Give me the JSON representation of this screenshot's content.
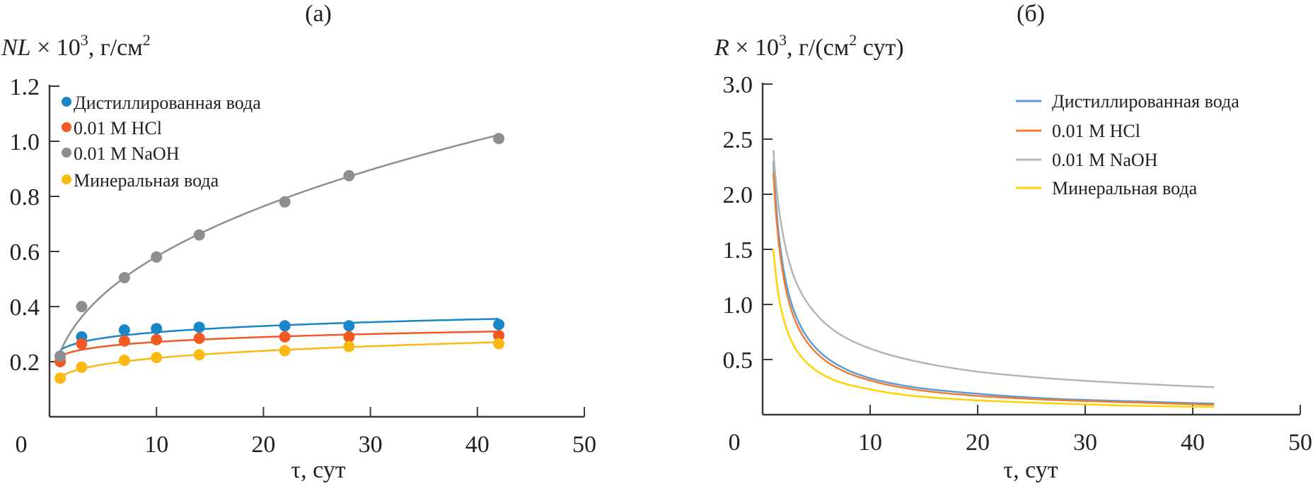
{
  "chart_data": [
    {
      "type": "scatter",
      "panel_label": "(а)",
      "ylabel": {
        "var": "NL",
        "mid": " × 10",
        "sup": "3",
        "unit": ", г/см",
        "sup2": "2"
      },
      "xlabel": "τ, сут",
      "xlim": [
        0,
        50
      ],
      "ylim": [
        0,
        1.2
      ],
      "xticks": [
        0,
        10,
        20,
        30,
        40,
        50
      ],
      "yticks": [
        "0.2",
        "0.4",
        "0.6",
        "0.8",
        "1.0",
        "1.2"
      ],
      "grid": false,
      "legend_position": "top-left",
      "fit": "power-law trend lines",
      "x": [
        1,
        3,
        7,
        10,
        14,
        22,
        28,
        42
      ],
      "series": [
        {
          "name": "Дистиллированная вода",
          "color": "#1a86c8",
          "values": [
            0.22,
            0.29,
            0.315,
            0.32,
            0.325,
            0.33,
            0.33,
            0.335
          ]
        },
        {
          "name": "0.01 M HCl",
          "color": "#f05a22",
          "values": [
            0.2,
            0.265,
            0.275,
            0.28,
            0.285,
            0.29,
            0.29,
            0.295
          ]
        },
        {
          "name": "0.01 M NaOH",
          "color": "#8c8f91",
          "values": [
            0.22,
            0.4,
            0.505,
            0.58,
            0.66,
            0.78,
            0.875,
            1.01
          ]
        },
        {
          "name": "Минеральная вода",
          "color": "#fdb913",
          "values": [
            0.14,
            0.18,
            0.205,
            0.215,
            0.225,
            0.24,
            0.255,
            0.265
          ]
        }
      ]
    },
    {
      "type": "line",
      "panel_label": "(б)",
      "ylabel": {
        "var": "R",
        "mid": " × 10",
        "sup": "3",
        "unit": ", г/(см",
        "sup2": "2",
        "tail": " сут)"
      },
      "xlabel": "τ, сут",
      "xlim": [
        0,
        50
      ],
      "ylim": [
        0,
        3.0
      ],
      "xticks": [
        0,
        10,
        20,
        30,
        40,
        50
      ],
      "yticks": [
        "0.5",
        "1.0",
        "1.5",
        "2.0",
        "2.5",
        "3.0"
      ],
      "grid": false,
      "legend_position": "top-right",
      "x": [
        1,
        2,
        3,
        5,
        7,
        10,
        14,
        20,
        28,
        35,
        42
      ],
      "series": [
        {
          "name": "Дистиллированная вода",
          "color": "#5b9bd5",
          "values": [
            2.3,
            1.29,
            0.92,
            0.6,
            0.45,
            0.33,
            0.25,
            0.19,
            0.14,
            0.12,
            0.1
          ]
        },
        {
          "name": "0.01 M HCl",
          "color": "#ed7d31",
          "values": [
            2.2,
            1.22,
            0.86,
            0.56,
            0.42,
            0.31,
            0.23,
            0.17,
            0.13,
            0.11,
            0.09
          ]
        },
        {
          "name": "0.01 M NaOH",
          "color": "#b4b4b4",
          "values": [
            2.4,
            1.58,
            1.23,
            0.91,
            0.74,
            0.6,
            0.49,
            0.39,
            0.32,
            0.28,
            0.25
          ]
        },
        {
          "name": "Минеральная вода",
          "color": "#ffd200",
          "values": [
            1.5,
            0.85,
            0.61,
            0.4,
            0.3,
            0.23,
            0.17,
            0.13,
            0.1,
            0.08,
            0.07
          ]
        }
      ]
    }
  ]
}
